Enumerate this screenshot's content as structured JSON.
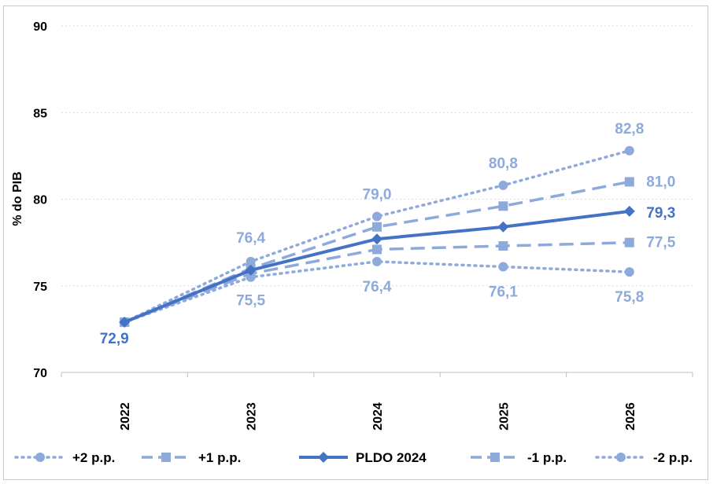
{
  "chart_data": {
    "type": "line",
    "x": [
      "2022",
      "2023",
      "2024",
      "2025",
      "2026"
    ],
    "ylabel": "% do PIB",
    "ylim": [
      70,
      90
    ],
    "yticks": [
      "70",
      "75",
      "80",
      "85",
      "90"
    ],
    "grid": "horizontal dotted",
    "legend_position": "bottom",
    "series": [
      {
        "name": "+2 p.p.",
        "values": [
          72.9,
          76.4,
          79.0,
          80.8,
          82.8
        ],
        "color": "#8eaadb",
        "style": "dotted",
        "marker": "circle",
        "labels": [
          null,
          "76,4",
          "79,0",
          "80,8",
          "82,8"
        ]
      },
      {
        "name": "+1 p.p.",
        "values": [
          72.9,
          76.0,
          78.4,
          79.6,
          81.0
        ],
        "color": "#8eaadb",
        "style": "dashed",
        "marker": "square",
        "labels": [
          null,
          null,
          null,
          null,
          "81,0"
        ]
      },
      {
        "name": "PLDO 2024",
        "values": [
          72.9,
          75.9,
          77.7,
          78.4,
          79.3
        ],
        "color": "#4472c4",
        "style": "solid",
        "marker": "diamond",
        "labels": [
          "72,9",
          null,
          null,
          null,
          "79,3"
        ]
      },
      {
        "name": "-1 p.p.",
        "values": [
          72.9,
          75.7,
          77.1,
          77.3,
          77.5
        ],
        "color": "#8eaadb",
        "style": "dashed",
        "marker": "square",
        "labels": [
          null,
          null,
          null,
          null,
          "77,5"
        ]
      },
      {
        "name": "-2 p.p.",
        "values": [
          72.9,
          75.5,
          76.4,
          76.1,
          75.8
        ],
        "color": "#8eaadb",
        "style": "dotted",
        "marker": "circle",
        "labels": [
          null,
          "75,5",
          "76,4",
          "76,1",
          "75,8"
        ]
      }
    ]
  }
}
